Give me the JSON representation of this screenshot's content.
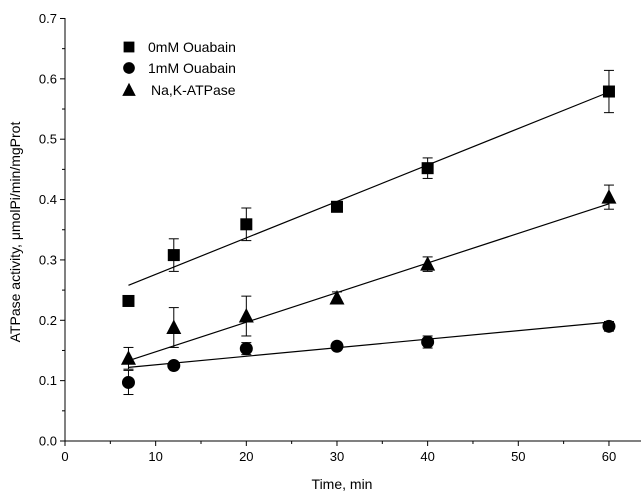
{
  "chart_data": {
    "type": "scatter",
    "xlabel": "Time, min",
    "ylabel": "ATPase activity, μmolPi/min/mgProt",
    "xlim": [
      0,
      70
    ],
    "ylim": [
      0.0,
      0.7
    ],
    "x_ticks": [
      0,
      10,
      20,
      30,
      40,
      50,
      60
    ],
    "y_ticks": [
      0.0,
      0.1,
      0.2,
      0.3,
      0.4,
      0.5,
      0.6,
      0.7
    ],
    "x_tick_labels": [
      "0",
      "10",
      "20",
      "30",
      "40",
      "50",
      "60"
    ],
    "y_tick_labels": [
      "0.0",
      "0.1",
      "0.2",
      "0.3",
      "0.4",
      "0.5",
      "0.6",
      "0.7"
    ],
    "grid": false,
    "legend_position": "top-left",
    "series": [
      {
        "name": "0mM Ouabain",
        "marker": "square",
        "x": [
          7,
          12,
          20,
          30,
          40,
          60
        ],
        "y": [
          0.232,
          0.308,
          0.359,
          0.388,
          0.452,
          0.579
        ],
        "err": [
          0,
          0.027,
          0.027,
          0,
          0.017,
          0.035
        ],
        "fit": {
          "x": [
            7,
            60
          ],
          "y": [
            0.258,
            0.578
          ]
        }
      },
      {
        "name": "1mM Ouabain",
        "marker": "circle",
        "x": [
          7,
          12,
          20,
          30,
          40,
          60
        ],
        "y": [
          0.097,
          0.125,
          0.153,
          0.157,
          0.164,
          0.19
        ],
        "err": [
          0.02,
          0,
          0.01,
          0,
          0.01,
          0.008
        ],
        "fit": {
          "x": [
            7,
            60
          ],
          "y": [
            0.122,
            0.197
          ]
        }
      },
      {
        "name": "Na,K-ATPase",
        "marker": "triangle",
        "x": [
          7,
          12,
          20,
          30,
          40,
          60
        ],
        "y": [
          0.137,
          0.188,
          0.207,
          0.237,
          0.293,
          0.404
        ],
        "err": [
          0.018,
          0.033,
          0.033,
          0.01,
          0.012,
          0.02
        ],
        "fit": {
          "x": [
            7,
            60
          ],
          "y": [
            0.133,
            0.393
          ]
        }
      }
    ]
  }
}
